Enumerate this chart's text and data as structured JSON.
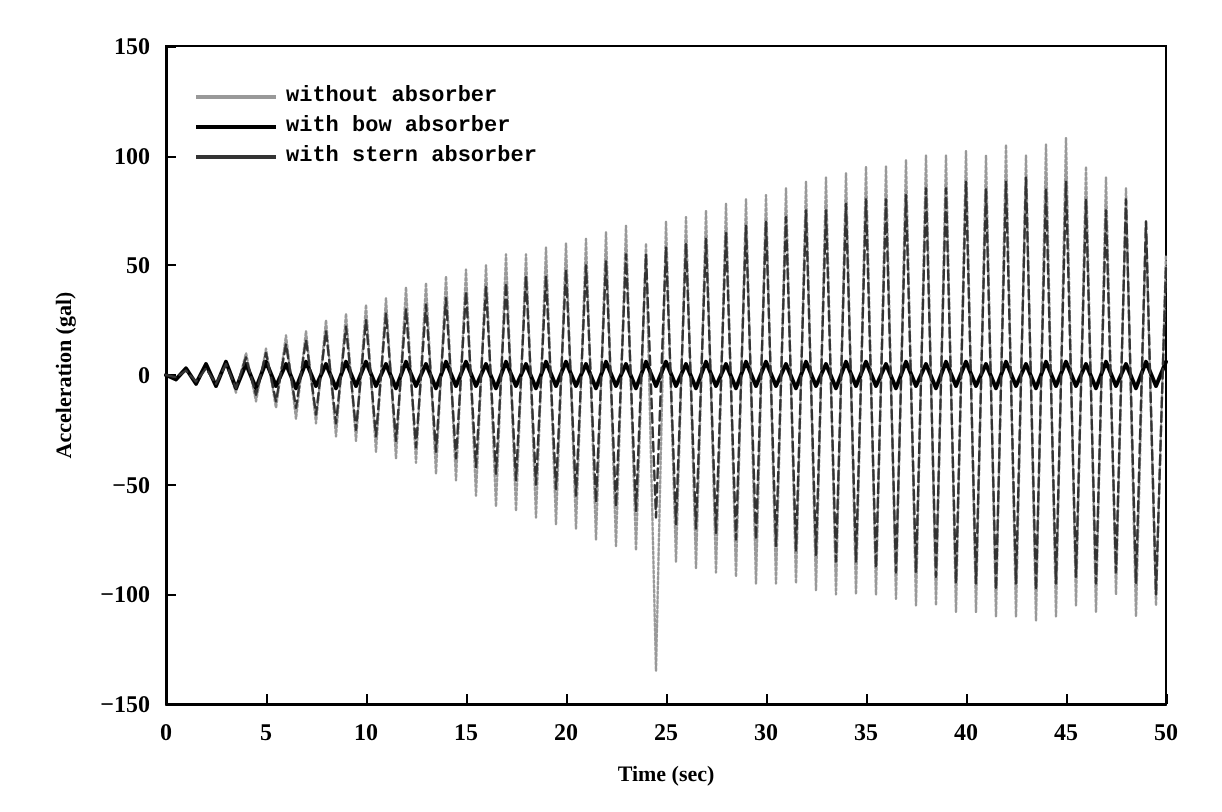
{
  "chart_data": {
    "type": "line",
    "xlabel": "Time (sec)",
    "ylabel": "Acceleration (gal)",
    "xlim": [
      0,
      50
    ],
    "xticks": [
      0,
      5,
      10,
      15,
      20,
      25,
      30,
      35,
      40,
      45,
      50
    ],
    "ylim": [
      -150,
      150
    ],
    "yticks": [
      -150,
      -100,
      -50,
      0,
      50,
      100,
      150
    ],
    "grid": false,
    "legend": "top left",
    "marker": "none",
    "x": [
      0,
      0.5,
      1,
      1.5,
      2,
      2.5,
      3,
      3.5,
      4,
      4.5,
      5,
      5.5,
      6,
      6.5,
      7,
      7.5,
      8,
      8.5,
      9,
      9.5,
      10,
      10.5,
      11,
      11.5,
      12,
      12.5,
      13,
      13.5,
      14,
      14.5,
      15,
      15.5,
      16,
      16.5,
      17,
      17.5,
      18,
      18.5,
      19,
      19.5,
      20,
      20.5,
      21,
      21.5,
      22,
      22.5,
      23,
      23.5,
      24,
      24.5,
      25,
      25.5,
      26,
      26.5,
      27,
      27.5,
      28,
      28.5,
      29,
      29.5,
      30,
      30.5,
      31,
      31.5,
      32,
      32.5,
      33,
      33.5,
      34,
      34.5,
      35,
      35.5,
      36,
      36.5,
      37,
      37.5,
      38,
      38.5,
      39,
      39.5,
      40,
      40.5,
      41,
      41.5,
      42,
      42.5,
      43,
      43.5,
      44,
      44.5,
      45,
      45.5,
      46,
      46.5,
      47,
      47.5,
      48,
      48.5,
      49,
      49.5,
      50
    ],
    "series": [
      {
        "name": "without absorber",
        "color": "#999999",
        "line_style": "dotted",
        "values": [
          0,
          -2,
          3,
          -3,
          4,
          -5,
          6,
          -8,
          10,
          -12,
          12,
          -15,
          18,
          -20,
          20,
          -22,
          25,
          -28,
          28,
          -30,
          32,
          -35,
          35,
          -38,
          40,
          -40,
          42,
          -45,
          45,
          -48,
          48,
          -55,
          50,
          -60,
          55,
          -62,
          55,
          -65,
          58,
          -68,
          60,
          -70,
          62,
          -75,
          65,
          -78,
          68,
          -80,
          60,
          -135,
          70,
          -85,
          72,
          -88,
          75,
          -90,
          78,
          -92,
          80,
          -95,
          82,
          -95,
          85,
          -95,
          88,
          -98,
          90,
          -100,
          92,
          -100,
          95,
          -100,
          95,
          -102,
          98,
          -105,
          100,
          -105,
          100,
          -108,
          102,
          -108,
          100,
          -110,
          105,
          -110,
          100,
          -112,
          105,
          -110,
          108,
          -105,
          95,
          -108,
          90,
          -100,
          85,
          -110,
          70,
          -105,
          55
        ]
      },
      {
        "name": "with bow absorber",
        "color": "#000000",
        "line_style": "solid",
        "values": [
          0,
          -2,
          3,
          -4,
          5,
          -5,
          6,
          -6,
          5,
          -6,
          6,
          -5,
          5,
          -6,
          6,
          -5,
          5,
          -6,
          6,
          -5,
          6,
          -5,
          5,
          -6,
          6,
          -5,
          5,
          -6,
          6,
          -5,
          6,
          -5,
          5,
          -6,
          6,
          -5,
          5,
          -6,
          6,
          -5,
          6,
          -5,
          5,
          -6,
          6,
          -5,
          5,
          -6,
          6,
          -5,
          6,
          -5,
          5,
          -6,
          6,
          -5,
          5,
          -6,
          6,
          -5,
          6,
          -5,
          5,
          -6,
          6,
          -5,
          5,
          -6,
          6,
          -5,
          6,
          -5,
          5,
          -6,
          6,
          -5,
          5,
          -6,
          6,
          -5,
          6,
          -5,
          5,
          -6,
          6,
          -5,
          5,
          -6,
          6,
          -5,
          6,
          -5,
          5,
          -6,
          6,
          -5,
          5,
          -6,
          6,
          -5,
          6
        ]
      },
      {
        "name": "with stern absorber",
        "color": "#333333",
        "line_style": "dashed",
        "values": [
          0,
          -1,
          2,
          -3,
          3,
          -4,
          5,
          -6,
          8,
          -9,
          10,
          -12,
          14,
          -15,
          16,
          -18,
          20,
          -22,
          22,
          -25,
          25,
          -28,
          28,
          -30,
          30,
          -33,
          32,
          -35,
          35,
          -38,
          38,
          -42,
          40,
          -45,
          42,
          -48,
          45,
          -50,
          45,
          -52,
          48,
          -55,
          50,
          -58,
          52,
          -60,
          55,
          -62,
          55,
          -65,
          58,
          -68,
          60,
          -70,
          62,
          -72,
          65,
          -75,
          68,
          -75,
          70,
          -78,
          72,
          -80,
          75,
          -82,
          75,
          -85,
          78,
          -85,
          80,
          -88,
          80,
          -90,
          82,
          -90,
          85,
          -92,
          85,
          -95,
          88,
          -95,
          85,
          -98,
          88,
          -95,
          90,
          -98,
          85,
          -95,
          88,
          -92,
          80,
          -95,
          75,
          -90,
          80,
          -95,
          70,
          -100,
          50
        ]
      }
    ]
  }
}
